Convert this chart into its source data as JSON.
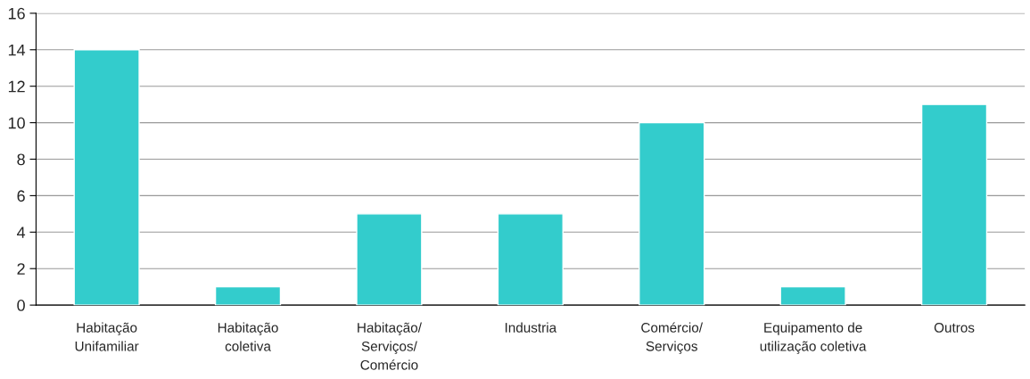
{
  "chart_data": {
    "type": "bar",
    "categories": [
      "Habitação\nUnifamiliar",
      "Habitação\ncoletiva",
      "Habitação/\nServiços/\nComércio",
      "Industria",
      "Comércio/\nServiços",
      "Equipamento de\nutilização coletiva",
      "Outros"
    ],
    "values": [
      14,
      1,
      5,
      5,
      10,
      1,
      11
    ],
    "color": "#33cccc",
    "ylim": [
      0,
      16
    ],
    "yticks": [
      0,
      2,
      4,
      6,
      8,
      10,
      12,
      14,
      16
    ],
    "grid": "y"
  }
}
